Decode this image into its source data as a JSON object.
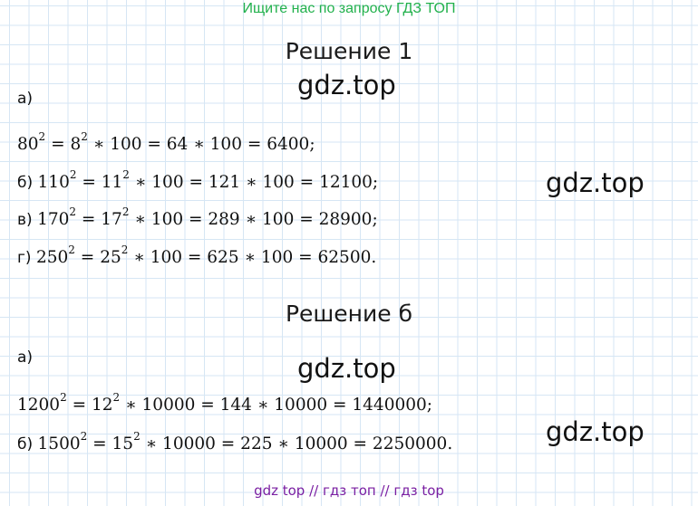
{
  "header": {
    "banner": "Ищите нас по запросу ГДЗ ТОП"
  },
  "watermark": "gdz.top",
  "solution1": {
    "title": "Решение 1",
    "part_label": "а)",
    "lines": [
      {
        "prefix": "",
        "base": "80",
        "exp": "2",
        "eq1": " = ",
        "base2": "8",
        "exp2": "2",
        "rest": " ∗ 100 = 64 ∗ 100 = 6400;"
      },
      {
        "prefix": "б) ",
        "base": "110",
        "exp": "2",
        "eq1": " = ",
        "base2": "11",
        "exp2": "2",
        "rest": " ∗ 100 = 121 ∗ 100 = 12100;"
      },
      {
        "prefix": "в) ",
        "base": "170",
        "exp": "2",
        "eq1": " = ",
        "base2": "17",
        "exp2": "2",
        "rest": " ∗ 100 = 289 ∗ 100 = 28900;"
      },
      {
        "prefix": "г) ",
        "base": "250",
        "exp": "2",
        "eq1": " = ",
        "base2": "25",
        "exp2": "2",
        "rest": " ∗ 100 = 625 ∗ 100 = 62500."
      }
    ]
  },
  "solution2": {
    "title": "Решение б",
    "part_label": "а)",
    "lines": [
      {
        "prefix": "",
        "base": "1200",
        "exp": "2",
        "eq1": " = ",
        "base2": "12",
        "exp2": "2",
        "rest": " ∗ 10000 = 144 ∗ 10000 = 1440000;"
      },
      {
        "prefix": "б) ",
        "base": "1500",
        "exp": "2",
        "eq1": " = ",
        "base2": "15",
        "exp2": "2",
        "rest": " ∗ 10000 = 225 ∗ 10000 = 2250000."
      }
    ]
  },
  "footer": {
    "text": "gdz top  //  гдз топ  //  гдз top"
  }
}
